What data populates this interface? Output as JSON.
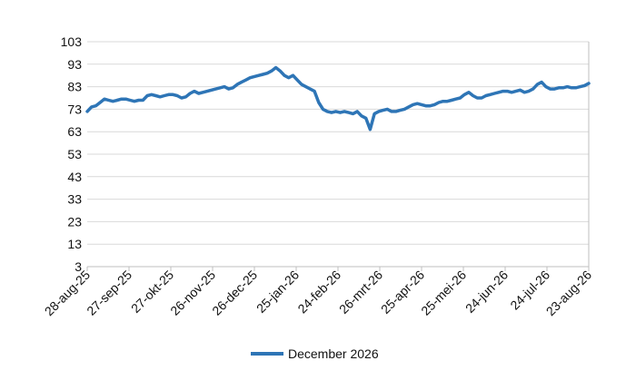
{
  "chart_data": {
    "type": "line",
    "title": "",
    "xlabel": "",
    "ylabel": "",
    "ylim": [
      3,
      103
    ],
    "y_ticks": [
      "103",
      "93",
      "83",
      "73",
      "63",
      "53",
      "43",
      "33",
      "23",
      "13",
      "3"
    ],
    "x_ticks": [
      "28-aug-25",
      "27-sep-25",
      "27-okt-25",
      "26-nov-25",
      "26-dec-25",
      "25-jan-26",
      "24-feb-26",
      "26-mrt-26",
      "25-apr-26",
      "25-mei-26",
      "24-jun-26",
      "24-jul-26",
      "23-aug-26"
    ],
    "grid": true,
    "legend": "bottom",
    "series": [
      {
        "name": "December 2026",
        "color": "#2e75b6",
        "values": [
          72,
          74,
          74.5,
          76,
          77.5,
          77,
          76.5,
          77,
          77.5,
          77.5,
          77,
          76.5,
          77,
          77,
          79,
          79.5,
          79,
          78.5,
          79,
          79.5,
          79.5,
          79,
          78,
          78.5,
          80,
          81,
          80,
          80.5,
          81,
          81.5,
          82,
          82.5,
          83,
          82,
          82.5,
          84,
          85,
          86,
          87,
          87.5,
          88,
          88.5,
          89,
          90,
          91.5,
          90,
          88,
          87,
          88,
          86,
          84,
          83,
          82,
          81,
          76,
          73,
          72,
          71.5,
          72,
          71.5,
          72,
          71.5,
          71,
          72,
          70,
          69,
          64,
          71,
          72,
          72.5,
          73,
          72,
          72,
          72.5,
          73,
          74,
          75,
          75.5,
          75,
          74.5,
          74.5,
          75,
          76,
          76.5,
          76.5,
          77,
          77.5,
          78,
          79.5,
          80.5,
          79,
          78,
          78,
          79,
          79.5,
          80,
          80.5,
          81,
          81,
          80.5,
          81,
          81.5,
          80.5,
          81,
          82,
          84,
          85,
          83,
          82,
          82,
          82.5,
          82.5,
          83,
          82.5,
          82.5,
          83,
          83.5,
          84.5
        ]
      }
    ]
  }
}
